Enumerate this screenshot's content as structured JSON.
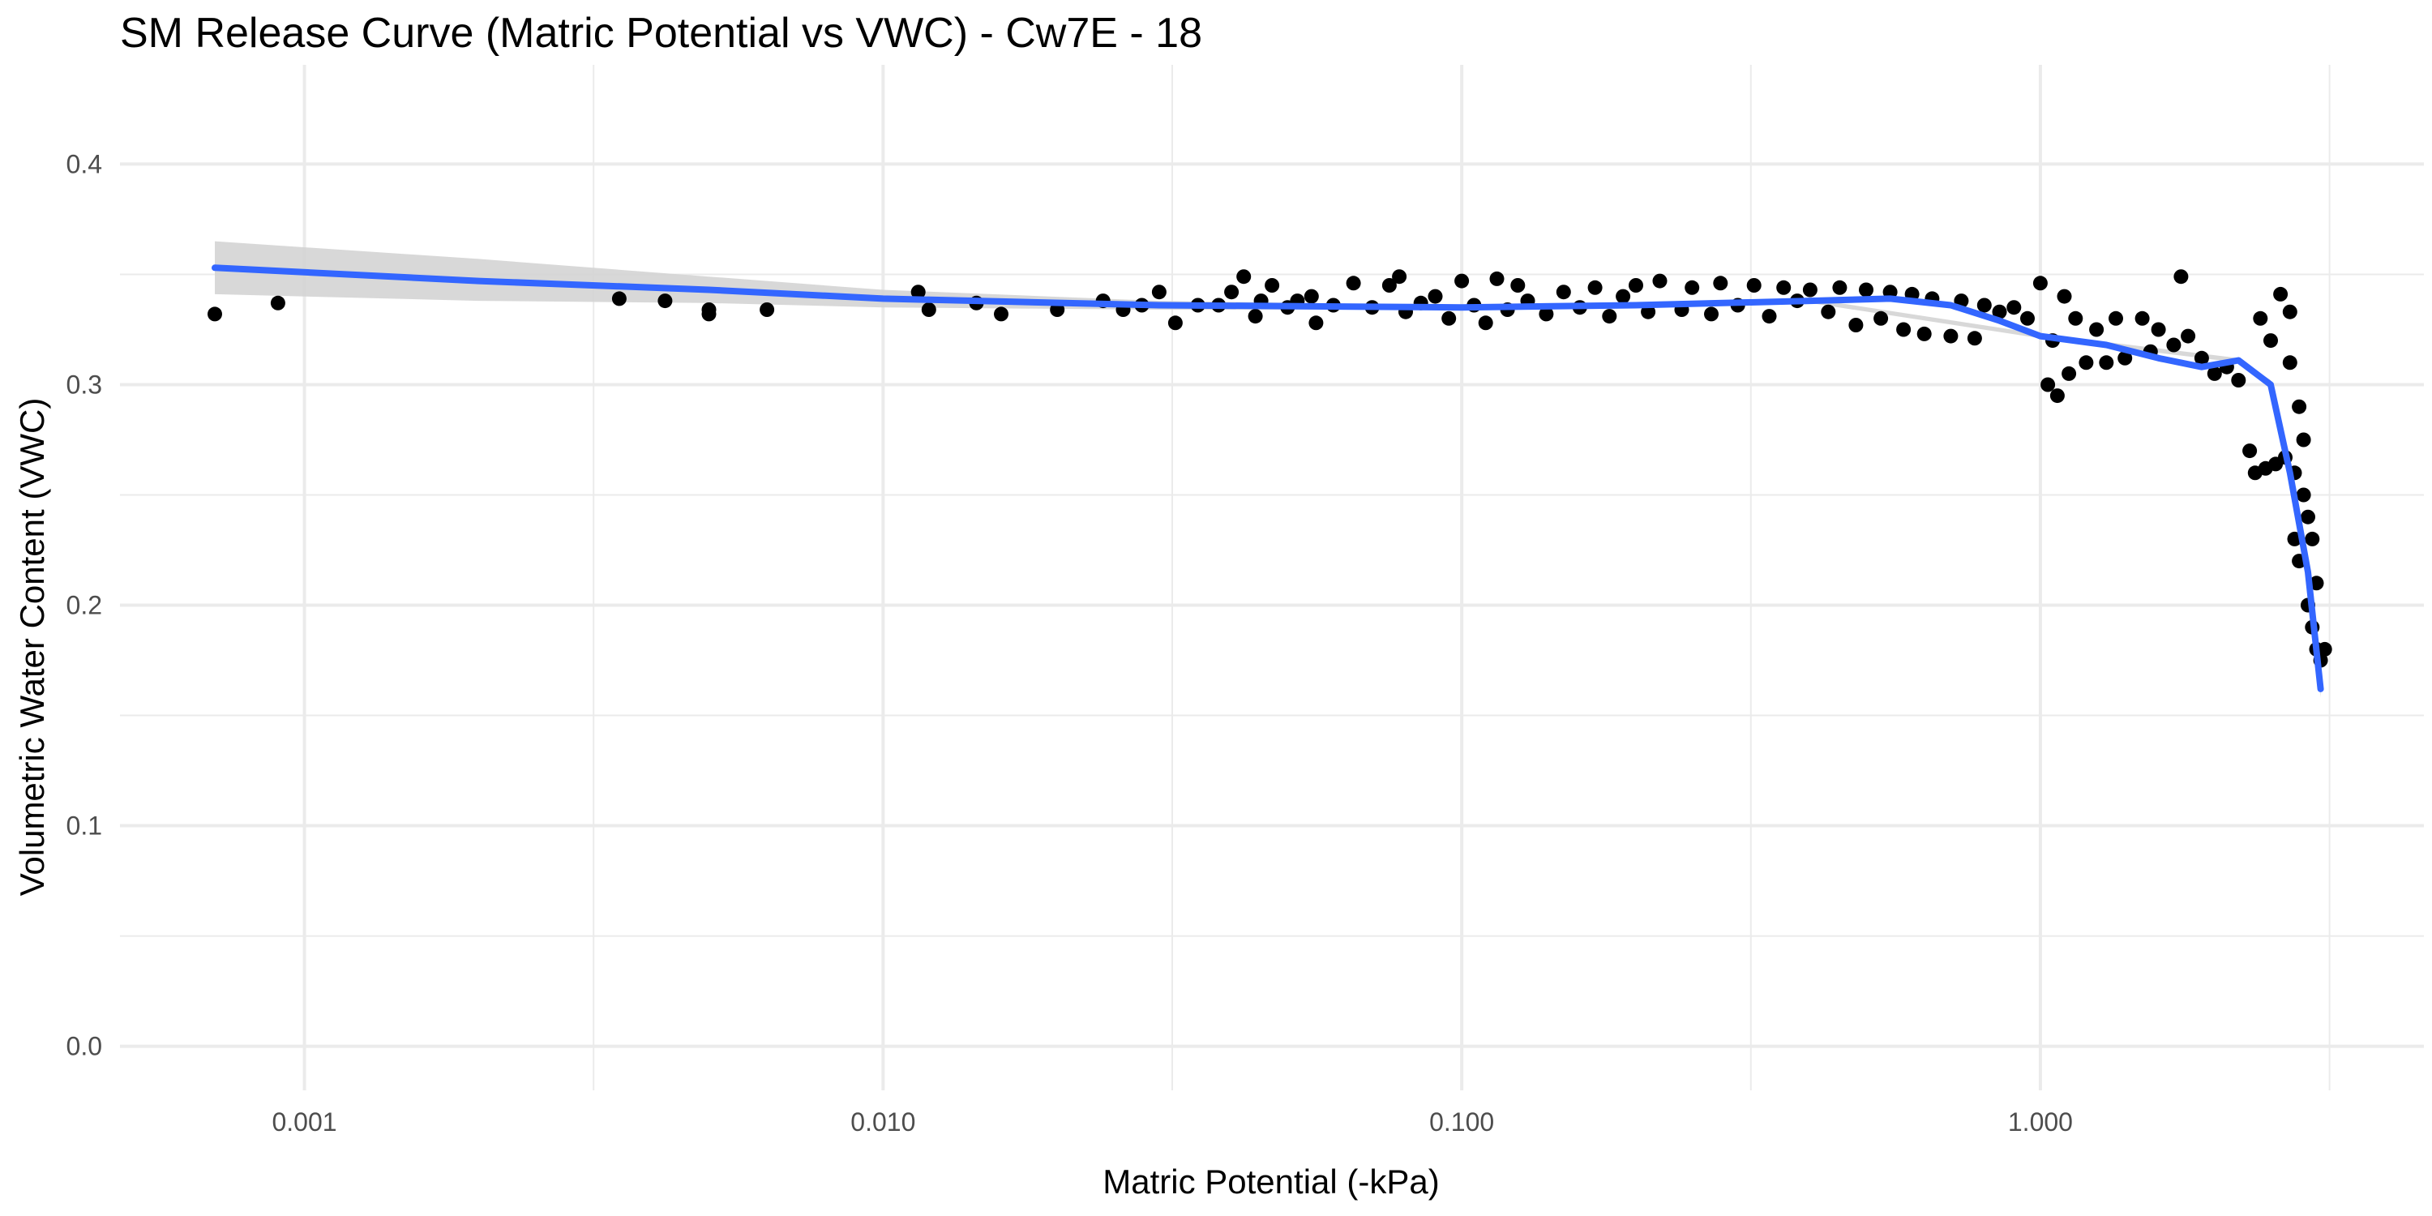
{
  "chart_data": {
    "type": "scatter",
    "title": "SM Release Curve (Matric Potential vs VWC) - Cw7E - 18",
    "xlabel": "Matric Potential (-kPa)",
    "ylabel": "Volumetric Water Content (VWC)",
    "x_scale": "log10",
    "xlim": [
      0.00048,
      4.6
    ],
    "ylim": [
      -0.02,
      0.445
    ],
    "x_ticks": [
      0.001,
      0.01,
      0.1,
      1
    ],
    "x_tick_labels": [
      "0.001",
      "0.010",
      "0.100",
      "1.000"
    ],
    "x_minor_breaks": [
      0.00316,
      0.0316,
      0.316,
      3.16
    ],
    "y_ticks": [
      0,
      0.1,
      0.2,
      0.3,
      0.4
    ],
    "y_tick_labels": [
      "0.0",
      "0.1",
      "0.2",
      "0.3",
      "0.4"
    ],
    "y_minor_breaks": [
      0.05,
      0.15,
      0.25,
      0.35
    ],
    "grid": true,
    "legend": "none",
    "colors": {
      "points": "#000000",
      "smooth_line": "#3366FF",
      "confidence_band": "#d4d4d4",
      "grid": "#ebebeb",
      "tick_label": "#4d4d4d"
    },
    "series": [
      {
        "type": "scatter",
        "points": [
          [
            0.0007,
            0.332
          ],
          [
            0.0009,
            0.337
          ],
          [
            0.0035,
            0.339
          ],
          [
            0.0042,
            0.338
          ],
          [
            0.005,
            0.334
          ],
          [
            0.005,
            0.332
          ],
          [
            0.0063,
            0.334
          ],
          [
            0.0115,
            0.342
          ],
          [
            0.012,
            0.334
          ],
          [
            0.0145,
            0.337
          ],
          [
            0.016,
            0.332
          ],
          [
            0.02,
            0.334
          ],
          [
            0.024,
            0.338
          ],
          [
            0.026,
            0.334
          ],
          [
            0.028,
            0.336
          ],
          [
            0.03,
            0.342
          ],
          [
            0.032,
            0.328
          ],
          [
            0.035,
            0.336
          ],
          [
            0.038,
            0.336
          ],
          [
            0.04,
            0.342
          ],
          [
            0.042,
            0.349
          ],
          [
            0.044,
            0.331
          ],
          [
            0.045,
            0.338
          ],
          [
            0.047,
            0.345
          ],
          [
            0.05,
            0.335
          ],
          [
            0.052,
            0.338
          ],
          [
            0.055,
            0.34
          ],
          [
            0.056,
            0.328
          ],
          [
            0.06,
            0.336
          ],
          [
            0.065,
            0.346
          ],
          [
            0.07,
            0.335
          ],
          [
            0.075,
            0.345
          ],
          [
            0.078,
            0.349
          ],
          [
            0.08,
            0.333
          ],
          [
            0.085,
            0.337
          ],
          [
            0.09,
            0.34
          ],
          [
            0.095,
            0.33
          ],
          [
            0.1,
            0.347
          ],
          [
            0.105,
            0.336
          ],
          [
            0.11,
            0.328
          ],
          [
            0.115,
            0.348
          ],
          [
            0.12,
            0.334
          ],
          [
            0.125,
            0.345
          ],
          [
            0.13,
            0.338
          ],
          [
            0.14,
            0.332
          ],
          [
            0.15,
            0.342
          ],
          [
            0.16,
            0.335
          ],
          [
            0.17,
            0.344
          ],
          [
            0.18,
            0.331
          ],
          [
            0.19,
            0.34
          ],
          [
            0.2,
            0.345
          ],
          [
            0.21,
            0.333
          ],
          [
            0.22,
            0.347
          ],
          [
            0.24,
            0.334
          ],
          [
            0.25,
            0.344
          ],
          [
            0.27,
            0.332
          ],
          [
            0.28,
            0.346
          ],
          [
            0.3,
            0.336
          ],
          [
            0.32,
            0.345
          ],
          [
            0.34,
            0.331
          ],
          [
            0.36,
            0.344
          ],
          [
            0.38,
            0.338
          ],
          [
            0.4,
            0.343
          ],
          [
            0.43,
            0.333
          ],
          [
            0.45,
            0.344
          ],
          [
            0.48,
            0.327
          ],
          [
            0.5,
            0.343
          ],
          [
            0.53,
            0.33
          ],
          [
            0.55,
            0.342
          ],
          [
            0.58,
            0.325
          ],
          [
            0.6,
            0.341
          ],
          [
            0.63,
            0.323
          ],
          [
            0.65,
            0.339
          ],
          [
            0.7,
            0.322
          ],
          [
            0.73,
            0.338
          ],
          [
            0.77,
            0.321
          ],
          [
            0.8,
            0.336
          ],
          [
            0.85,
            0.333
          ],
          [
            0.9,
            0.335
          ],
          [
            0.95,
            0.33
          ],
          [
            1.0,
            0.346
          ],
          [
            1.03,
            0.3
          ],
          [
            1.05,
            0.32
          ],
          [
            1.07,
            0.295
          ],
          [
            1.1,
            0.34
          ],
          [
            1.12,
            0.305
          ],
          [
            1.15,
            0.33
          ],
          [
            1.2,
            0.31
          ],
          [
            1.25,
            0.325
          ],
          [
            1.3,
            0.31
          ],
          [
            1.35,
            0.33
          ],
          [
            1.4,
            0.312
          ],
          [
            1.5,
            0.33
          ],
          [
            1.55,
            0.315
          ],
          [
            1.6,
            0.325
          ],
          [
            1.7,
            0.318
          ],
          [
            1.75,
            0.349
          ],
          [
            1.8,
            0.322
          ],
          [
            1.9,
            0.312
          ],
          [
            2.0,
            0.305
          ],
          [
            2.1,
            0.308
          ],
          [
            2.2,
            0.302
          ],
          [
            2.3,
            0.27
          ],
          [
            2.35,
            0.26
          ],
          [
            2.4,
            0.33
          ],
          [
            2.45,
            0.262
          ],
          [
            2.5,
            0.32
          ],
          [
            2.55,
            0.264
          ],
          [
            2.6,
            0.341
          ],
          [
            2.65,
            0.267
          ],
          [
            2.7,
            0.333
          ],
          [
            2.7,
            0.31
          ],
          [
            2.75,
            0.26
          ],
          [
            2.75,
            0.23
          ],
          [
            2.8,
            0.29
          ],
          [
            2.8,
            0.22
          ],
          [
            2.85,
            0.275
          ],
          [
            2.85,
            0.25
          ],
          [
            2.9,
            0.24
          ],
          [
            2.9,
            0.2
          ],
          [
            2.95,
            0.23
          ],
          [
            2.95,
            0.19
          ],
          [
            3.0,
            0.21
          ],
          [
            3.0,
            0.18
          ],
          [
            3.05,
            0.175
          ],
          [
            3.1,
            0.18
          ]
        ]
      },
      {
        "type": "smooth",
        "points": [
          [
            0.0007,
            0.353
          ],
          [
            0.002,
            0.347
          ],
          [
            0.005,
            0.343
          ],
          [
            0.01,
            0.339
          ],
          [
            0.03,
            0.336
          ],
          [
            0.1,
            0.335
          ],
          [
            0.2,
            0.336
          ],
          [
            0.4,
            0.338
          ],
          [
            0.55,
            0.339
          ],
          [
            0.7,
            0.336
          ],
          [
            0.85,
            0.329
          ],
          [
            1.0,
            0.322
          ],
          [
            1.3,
            0.318
          ],
          [
            1.6,
            0.312
          ],
          [
            1.9,
            0.308
          ],
          [
            2.2,
            0.311
          ],
          [
            2.5,
            0.3
          ],
          [
            2.7,
            0.26
          ],
          [
            2.9,
            0.215
          ],
          [
            3.05,
            0.162
          ]
        ],
        "band": [
          [
            0.0007,
            0.341,
            0.365
          ],
          [
            0.002,
            0.338,
            0.357
          ],
          [
            0.005,
            0.337,
            0.349
          ],
          [
            0.01,
            0.335,
            0.343
          ],
          [
            0.03,
            0.334,
            0.338
          ],
          [
            0.1,
            0.334,
            0.336
          ],
          [
            0.4,
            0.337,
            0.339
          ],
          [
            1.0,
            0.321,
            0.323
          ],
          [
            2.2,
            0.31,
            0.312
          ],
          [
            2.5,
            0.298,
            0.302
          ],
          [
            2.9,
            0.212,
            0.218
          ],
          [
            3.05,
            0.158,
            0.166
          ]
        ]
      }
    ]
  }
}
